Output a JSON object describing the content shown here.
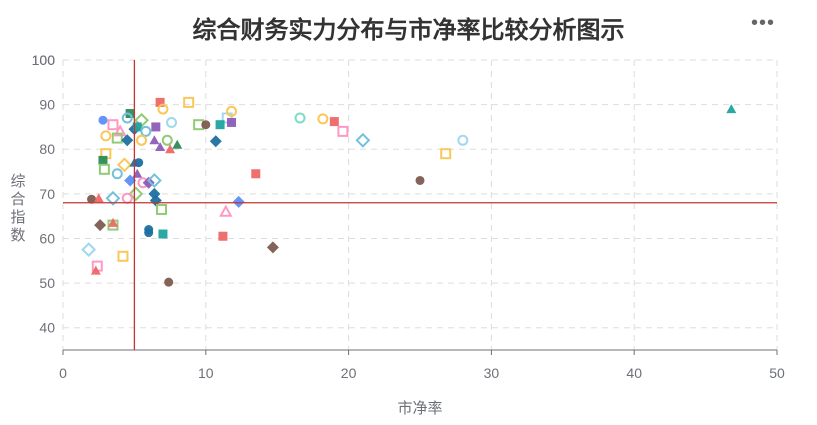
{
  "chart_data": {
    "type": "scatter",
    "title": "综合财务实力分布与市净率比较分析图示",
    "xlabel": "市净率",
    "ylabel": "综合指数",
    "xlim": [
      0,
      50
    ],
    "ylim": [
      35,
      100
    ],
    "xticks": [
      0,
      10,
      20,
      30,
      40,
      50
    ],
    "yticks": [
      40,
      50,
      60,
      70,
      80,
      90,
      100
    ],
    "grid": true,
    "reference_lines": {
      "x": 5.0,
      "y": 68.0,
      "color": "#c23531"
    },
    "points": [
      {
        "x": 2.8,
        "y": 86.5,
        "shape": "circle",
        "filled": true,
        "color": "#5b8ff9"
      },
      {
        "x": 4.7,
        "y": 88.0,
        "shape": "square",
        "filled": true,
        "color": "#2e8b57"
      },
      {
        "x": 4.5,
        "y": 87.0,
        "shape": "circle",
        "filled": false,
        "color": "#73c0de"
      },
      {
        "x": 6.8,
        "y": 90.5,
        "shape": "square",
        "filled": true,
        "color": "#ee6666"
      },
      {
        "x": 7.0,
        "y": 89.0,
        "shape": "circle",
        "filled": false,
        "color": "#fac858"
      },
      {
        "x": 8.8,
        "y": 90.5,
        "shape": "square",
        "filled": false,
        "color": "#fac858"
      },
      {
        "x": 3.5,
        "y": 85.5,
        "shape": "square",
        "filled": false,
        "color": "#ff99c3"
      },
      {
        "x": 3.0,
        "y": 83.0,
        "shape": "circle",
        "filled": false,
        "color": "#fac858"
      },
      {
        "x": 4.0,
        "y": 84.0,
        "shape": "triangle",
        "filled": false,
        "color": "#ff99c3"
      },
      {
        "x": 3.8,
        "y": 82.5,
        "shape": "square",
        "filled": false,
        "color": "#91cc75"
      },
      {
        "x": 4.5,
        "y": 82.0,
        "shape": "diamond",
        "filled": true,
        "color": "#1f6f9f"
      },
      {
        "x": 5.0,
        "y": 84.5,
        "shape": "diamond",
        "filled": true,
        "color": "#1f6f9f"
      },
      {
        "x": 5.5,
        "y": 86.5,
        "shape": "diamond",
        "filled": false,
        "color": "#91cc75"
      },
      {
        "x": 5.2,
        "y": 85.0,
        "shape": "square",
        "filled": true,
        "color": "#20a39e"
      },
      {
        "x": 5.8,
        "y": 84.0,
        "shape": "circle",
        "filled": false,
        "color": "#73c0de"
      },
      {
        "x": 6.5,
        "y": 85.0,
        "shape": "square",
        "filled": true,
        "color": "#8c5cb8"
      },
      {
        "x": 7.6,
        "y": 86.0,
        "shape": "circle",
        "filled": false,
        "color": "#a0d8ef"
      },
      {
        "x": 6.4,
        "y": 82.0,
        "shape": "triangle",
        "filled": true,
        "color": "#8c5cb8"
      },
      {
        "x": 6.8,
        "y": 80.5,
        "shape": "triangle",
        "filled": true,
        "color": "#8c5cb8"
      },
      {
        "x": 7.3,
        "y": 82.0,
        "shape": "circle",
        "filled": false,
        "color": "#91cc75"
      },
      {
        "x": 7.5,
        "y": 80.0,
        "shape": "triangle",
        "filled": true,
        "color": "#ee6666"
      },
      {
        "x": 8.0,
        "y": 81.0,
        "shape": "triangle",
        "filled": true,
        "color": "#2e8b57"
      },
      {
        "x": 5.5,
        "y": 82.0,
        "shape": "circle",
        "filled": false,
        "color": "#fac858"
      },
      {
        "x": 9.5,
        "y": 85.5,
        "shape": "square",
        "filled": false,
        "color": "#91cc75"
      },
      {
        "x": 10.0,
        "y": 85.5,
        "shape": "circle",
        "filled": true,
        "color": "#7d5b4f"
      },
      {
        "x": 11.5,
        "y": 87.0,
        "shape": "square",
        "filled": false,
        "color": "#a0d8ef"
      },
      {
        "x": 11.8,
        "y": 88.5,
        "shape": "circle",
        "filled": false,
        "color": "#fac858"
      },
      {
        "x": 11.0,
        "y": 85.5,
        "shape": "square",
        "filled": true,
        "color": "#20a39e"
      },
      {
        "x": 11.8,
        "y": 86.0,
        "shape": "square",
        "filled": true,
        "color": "#8c5cb8"
      },
      {
        "x": 10.7,
        "y": 81.8,
        "shape": "diamond",
        "filled": true,
        "color": "#1f6f9f"
      },
      {
        "x": 3.0,
        "y": 79.0,
        "shape": "square",
        "filled": false,
        "color": "#fac858"
      },
      {
        "x": 2.8,
        "y": 77.5,
        "shape": "square",
        "filled": true,
        "color": "#2e8b57"
      },
      {
        "x": 2.9,
        "y": 75.5,
        "shape": "square",
        "filled": false,
        "color": "#91cc75"
      },
      {
        "x": 3.8,
        "y": 74.5,
        "shape": "circle",
        "filled": false,
        "color": "#73c0de"
      },
      {
        "x": 4.3,
        "y": 76.5,
        "shape": "diamond",
        "filled": false,
        "color": "#fac858"
      },
      {
        "x": 5.0,
        "y": 77.0,
        "shape": "triangle",
        "filled": true,
        "color": "#1f6f9f"
      },
      {
        "x": 5.3,
        "y": 77.0,
        "shape": "circle",
        "filled": true,
        "color": "#1f6f9f"
      },
      {
        "x": 4.7,
        "y": 73.0,
        "shape": "diamond",
        "filled": true,
        "color": "#5b8ff9"
      },
      {
        "x": 5.2,
        "y": 74.5,
        "shape": "triangle",
        "filled": true,
        "color": "#8c5cb8"
      },
      {
        "x": 5.6,
        "y": 72.5,
        "shape": "circle",
        "filled": false,
        "color": "#ff99c3"
      },
      {
        "x": 6.0,
        "y": 72.5,
        "shape": "diamond",
        "filled": true,
        "color": "#8c5cb8"
      },
      {
        "x": 6.4,
        "y": 73.0,
        "shape": "diamond",
        "filled": false,
        "color": "#73c0de"
      },
      {
        "x": 6.4,
        "y": 70.0,
        "shape": "diamond",
        "filled": true,
        "color": "#1f6f9f"
      },
      {
        "x": 6.5,
        "y": 68.5,
        "shape": "diamond",
        "filled": true,
        "color": "#1f6f9f"
      },
      {
        "x": 6.9,
        "y": 66.5,
        "shape": "square",
        "filled": false,
        "color": "#91cc75"
      },
      {
        "x": 5.1,
        "y": 70.0,
        "shape": "diamond",
        "filled": false,
        "color": "#91cc75"
      },
      {
        "x": 3.5,
        "y": 69.0,
        "shape": "diamond",
        "filled": false,
        "color": "#73c0de"
      },
      {
        "x": 4.5,
        "y": 69.0,
        "shape": "circle",
        "filled": false,
        "color": "#ff99c3"
      },
      {
        "x": 2.0,
        "y": 68.8,
        "shape": "circle",
        "filled": true,
        "color": "#7d5b4f"
      },
      {
        "x": 2.5,
        "y": 69.0,
        "shape": "triangle",
        "filled": true,
        "color": "#ee6666"
      },
      {
        "x": 2.6,
        "y": 63.0,
        "shape": "diamond",
        "filled": true,
        "color": "#7d5b4f"
      },
      {
        "x": 3.5,
        "y": 63.0,
        "shape": "square",
        "filled": false,
        "color": "#91cc75"
      },
      {
        "x": 3.5,
        "y": 63.5,
        "shape": "triangle",
        "filled": true,
        "color": "#ee6666"
      },
      {
        "x": 6.0,
        "y": 62.0,
        "shape": "circle",
        "filled": true,
        "color": "#1f6f9f"
      },
      {
        "x": 6.0,
        "y": 61.3,
        "shape": "circle",
        "filled": true,
        "color": "#1f6f9f"
      },
      {
        "x": 7.0,
        "y": 61.0,
        "shape": "square",
        "filled": true,
        "color": "#20a39e"
      },
      {
        "x": 1.8,
        "y": 57.5,
        "shape": "diamond",
        "filled": false,
        "color": "#a0d8ef"
      },
      {
        "x": 2.4,
        "y": 53.8,
        "shape": "square",
        "filled": false,
        "color": "#ff99c3"
      },
      {
        "x": 2.3,
        "y": 52.8,
        "shape": "triangle",
        "filled": true,
        "color": "#ee6666"
      },
      {
        "x": 4.2,
        "y": 56.0,
        "shape": "square",
        "filled": false,
        "color": "#fac858"
      },
      {
        "x": 7.4,
        "y": 50.2,
        "shape": "circle",
        "filled": true,
        "color": "#7d5b4f"
      },
      {
        "x": 11.2,
        "y": 60.5,
        "shape": "square",
        "filled": true,
        "color": "#ee6666"
      },
      {
        "x": 11.4,
        "y": 66.0,
        "shape": "triangle",
        "filled": false,
        "color": "#ff99c3"
      },
      {
        "x": 12.3,
        "y": 68.2,
        "shape": "diamond",
        "filled": true,
        "color": "#5b8ff9"
      },
      {
        "x": 13.5,
        "y": 74.5,
        "shape": "square",
        "filled": true,
        "color": "#ee6666"
      },
      {
        "x": 14.7,
        "y": 58.0,
        "shape": "diamond",
        "filled": true,
        "color": "#7d5b4f"
      },
      {
        "x": 16.6,
        "y": 87.0,
        "shape": "circle",
        "filled": false,
        "color": "#7ddcc3"
      },
      {
        "x": 18.2,
        "y": 86.8,
        "shape": "circle",
        "filled": false,
        "color": "#fac858"
      },
      {
        "x": 19.0,
        "y": 86.2,
        "shape": "square",
        "filled": true,
        "color": "#ee6666"
      },
      {
        "x": 19.6,
        "y": 84.0,
        "shape": "square",
        "filled": false,
        "color": "#ff99c3"
      },
      {
        "x": 21.0,
        "y": 82.0,
        "shape": "diamond",
        "filled": false,
        "color": "#73c0de"
      },
      {
        "x": 25.0,
        "y": 73.0,
        "shape": "circle",
        "filled": true,
        "color": "#7d5b4f"
      },
      {
        "x": 26.8,
        "y": 79.0,
        "shape": "square",
        "filled": false,
        "color": "#fac858"
      },
      {
        "x": 28.0,
        "y": 82.0,
        "shape": "circle",
        "filled": false,
        "color": "#a0d8ef"
      },
      {
        "x": 46.8,
        "y": 89.0,
        "shape": "triangle",
        "filled": true,
        "color": "#20a39e"
      }
    ]
  }
}
